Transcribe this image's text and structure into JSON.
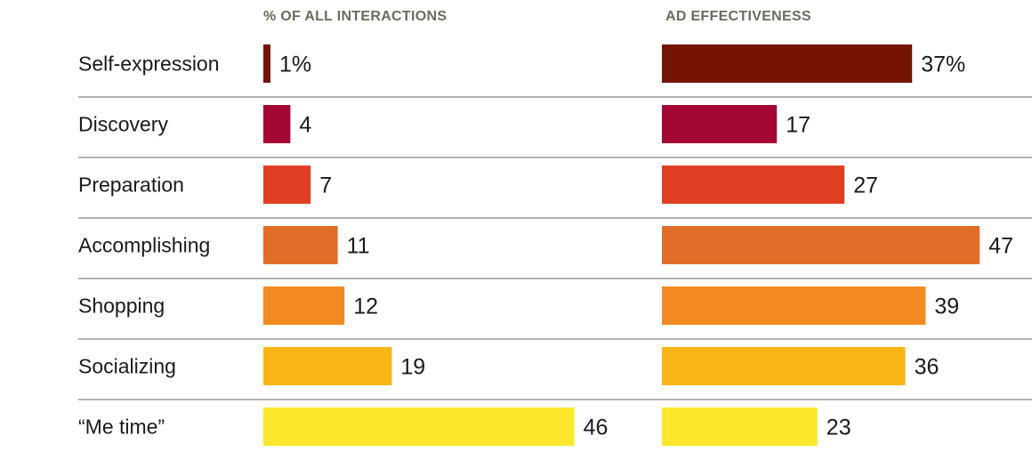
{
  "chart_data": {
    "type": "bar",
    "panels": [
      {
        "title": "% OF ALL INTERACTIONS",
        "value_labels": [
          "1%",
          "4",
          "7",
          "11",
          "12",
          "19",
          "46"
        ]
      },
      {
        "title": "AD EFFECTIVENESS",
        "value_labels": [
          "37%",
          "17",
          "27",
          "47",
          "39",
          "36",
          "23"
        ]
      }
    ],
    "categories": [
      "Self-expression",
      "Discovery",
      "Preparation",
      "Accomplishing",
      "Shopping",
      "Socializing",
      "“Me time”"
    ],
    "series": [
      {
        "name": "% OF ALL INTERACTIONS",
        "values": [
          1,
          4,
          7,
          11,
          12,
          19,
          46
        ]
      },
      {
        "name": "AD EFFECTIVENESS",
        "values": [
          37,
          17,
          27,
          47,
          39,
          36,
          23
        ]
      }
    ],
    "colors": [
      "#731500",
      "#a50734",
      "#e03f23",
      "#e06e29",
      "#f38a22",
      "#f9b515",
      "#fde72c"
    ],
    "separator_color": "#9a9a9a"
  }
}
